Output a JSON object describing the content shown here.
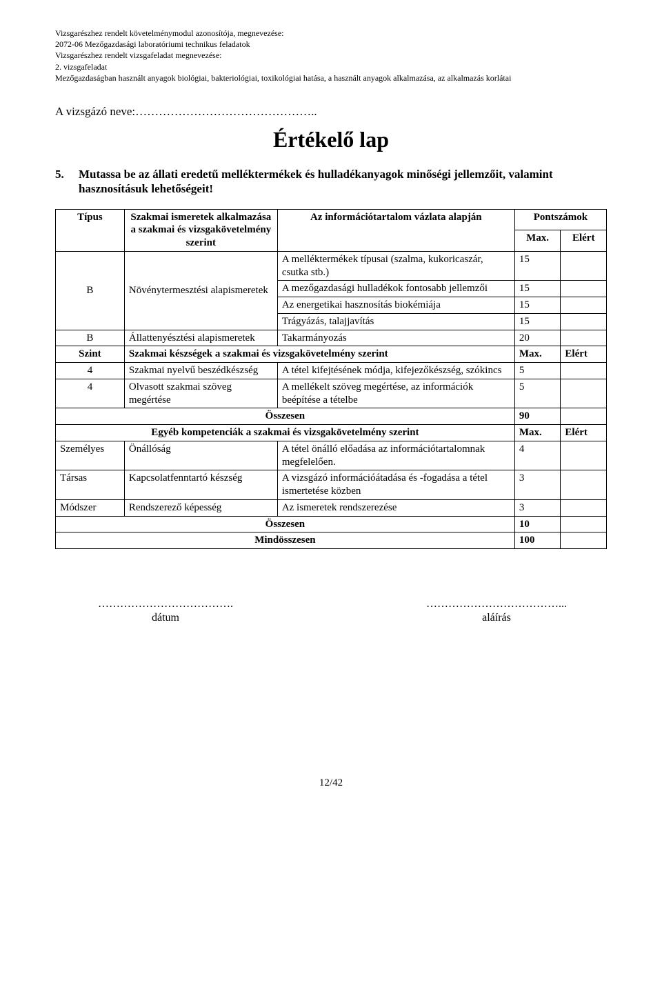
{
  "header": {
    "l1": "Vizsgarészhez rendelt követelménymodul azonosítója, megnevezése:",
    "l2": "2072-06 Mezőgazdasági laboratóriumi technikus feladatok",
    "l3": "Vizsgarészhez rendelt vizsgafeladat megnevezése:",
    "l4": "2. vizsgafeladat",
    "l5": "Mezőgazdaságban használt anyagok biológiai, bakteriológiai, toxikológiai hatása, a használt anyagok alkalmazása, az alkalmazás korlátai"
  },
  "candidate_label": "A vizsgázó neve:………………………………………..",
  "title": "Értékelő lap",
  "question": {
    "num": "5.",
    "text": "Mutassa be az állati eredetű melléktermékek és hulladékanyagok minőségi jellemzőit, valamint hasznosításuk lehetőségeit!"
  },
  "table": {
    "hdr_type": "Típus",
    "hdr_skill": "Szakmai ismeretek alkalmazása a szakmai és vizsgakövetelmény szerint",
    "hdr_info": "Az információtartalom vázlata alapján",
    "hdr_points": "Pontszámok",
    "hdr_max": "Max.",
    "hdr_elert": "Elért",
    "r1_info": "A melléktermékek típusai (szalma, kukoricaszár, csutka stb.)",
    "r1_max": "15",
    "b1_type": "B",
    "b1_skill": "Növénytermesztési alapismeretek",
    "r2_info": "A mezőgazdasági hulladékok fontosabb jellemzői",
    "r2_max": "15",
    "r3_info": "Az energetikai hasznosítás biokémiája",
    "r3_max": "15",
    "r4_info": "Trágyázás, talajjavítás",
    "r4_max": "15",
    "b2_type": "B",
    "b2_skill": "Állattenyésztési alapismeretek",
    "r5_info": "Takarmányozás",
    "r5_max": "20",
    "szint_label": "Szint",
    "szint_hdr": "Szakmai készségek a szakmai és vizsgakövetelmény szerint",
    "szint_max": "Max.",
    "szint_elert": "Elért",
    "s1_type": "4",
    "s1_skill": "Szakmai nyelvű beszédkészség",
    "s1_info": "A tétel kifejtésének módja, kifejezőkészség, szókincs",
    "s1_max": "5",
    "s2_type": "4",
    "s2_skill": "Olvasott szakmai szöveg megértése",
    "s2_info": "A mellékelt szöveg megértése, az információk beépítése a tételbe",
    "s2_max": "5",
    "ossz1_label": "Összesen",
    "ossz1_max": "90",
    "egyeb_hdr": "Egyéb kompetenciák a szakmai és vizsgakövetelmény szerint",
    "egyeb_max": "Max.",
    "egyeb_elert": "Elért",
    "e1_type": "Személyes",
    "e1_skill": "Önállóság",
    "e1_info": "A tétel önálló előadása az információtartalomnak megfelelően.",
    "e1_max": "4",
    "e2_type": "Társas",
    "e2_skill": "Kapcsolatfenntartó készség",
    "e2_info": "A vizsgázó információátadása és -fogadása a tétel ismertetése közben",
    "e2_max": "3",
    "e3_type": "Módszer",
    "e3_skill": "Rendszerező képesség",
    "e3_info": "Az ismeretek rendszerezése",
    "e3_max": "3",
    "ossz2_label": "Összesen",
    "ossz2_max": "10",
    "mind_label": "Mindösszesen",
    "mind_max": "100"
  },
  "sign": {
    "date_dots": "……………………………….",
    "date_label": "dátum",
    "sig_dots": "………………………………...",
    "sig_label": "aláírás"
  },
  "page_num": "12/42"
}
